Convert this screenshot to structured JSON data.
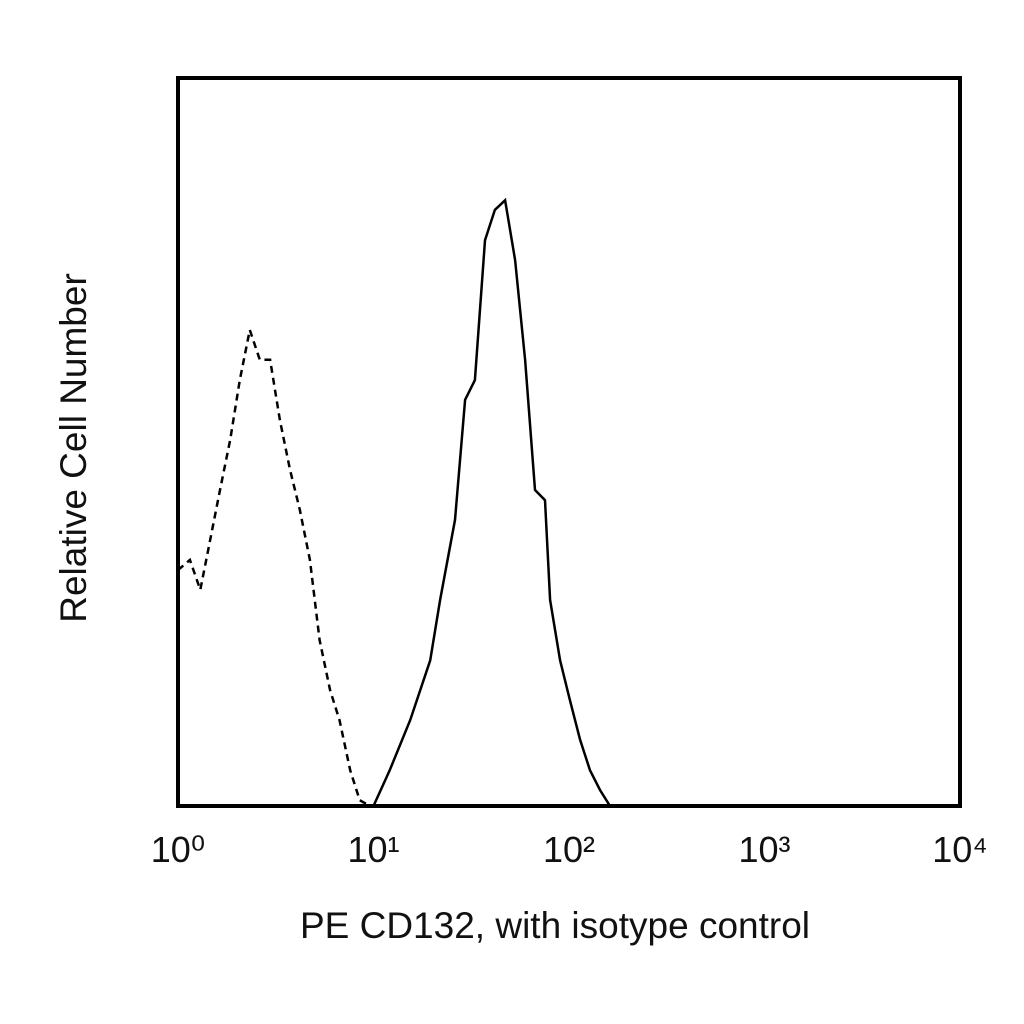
{
  "chart_data": {
    "type": "line",
    "xlabel": "PE CD132, with isotype control",
    "ylabel": "Relative Cell Number",
    "xscale": "log",
    "xlim": [
      1,
      10000
    ],
    "xticks": [
      {
        "value": 1,
        "label": "10⁰"
      },
      {
        "value": 10,
        "label": "10¹"
      },
      {
        "value": 100,
        "label": "10²"
      },
      {
        "value": 1000,
        "label": "10³"
      },
      {
        "value": 10000,
        "label": "10⁴"
      }
    ],
    "ylim": [
      0,
      100
    ],
    "series": [
      {
        "color": "#000000",
        "dashed": false,
        "x": [
          10,
          12.1,
          15.4,
          19.5,
          21.9,
          26.1,
          29.4,
          33,
          37.2,
          41.8,
          47.1,
          53,
          59.6,
          67,
          75.4,
          80,
          90,
          101,
          114,
          128,
          144,
          162
        ],
        "values": [
          0,
          4.9,
          11.8,
          20,
          28.3,
          39.3,
          55.8,
          58.5,
          77.7,
          81.9,
          83.2,
          75,
          61.3,
          43.4,
          42,
          28.3,
          20,
          14.6,
          9.1,
          4.9,
          2.2,
          0
        ]
      },
      {
        "color": "#000000",
        "dashed": true,
        "x": [
          1,
          1.15,
          1.3,
          1.46,
          1.64,
          1.85,
          2.07,
          2.33,
          2.62,
          2.96,
          3.32,
          3.74,
          4.2,
          4.73,
          5.3,
          6,
          6.7,
          7.6,
          8.5,
          9.6
        ],
        "values": [
          32.4,
          33.8,
          29.7,
          36.5,
          43.4,
          50.3,
          58.5,
          65.4,
          61.3,
          61.3,
          53,
          46.2,
          40.7,
          33.8,
          22.8,
          15.9,
          11.8,
          4.9,
          0.8,
          0
        ]
      }
    ]
  }
}
